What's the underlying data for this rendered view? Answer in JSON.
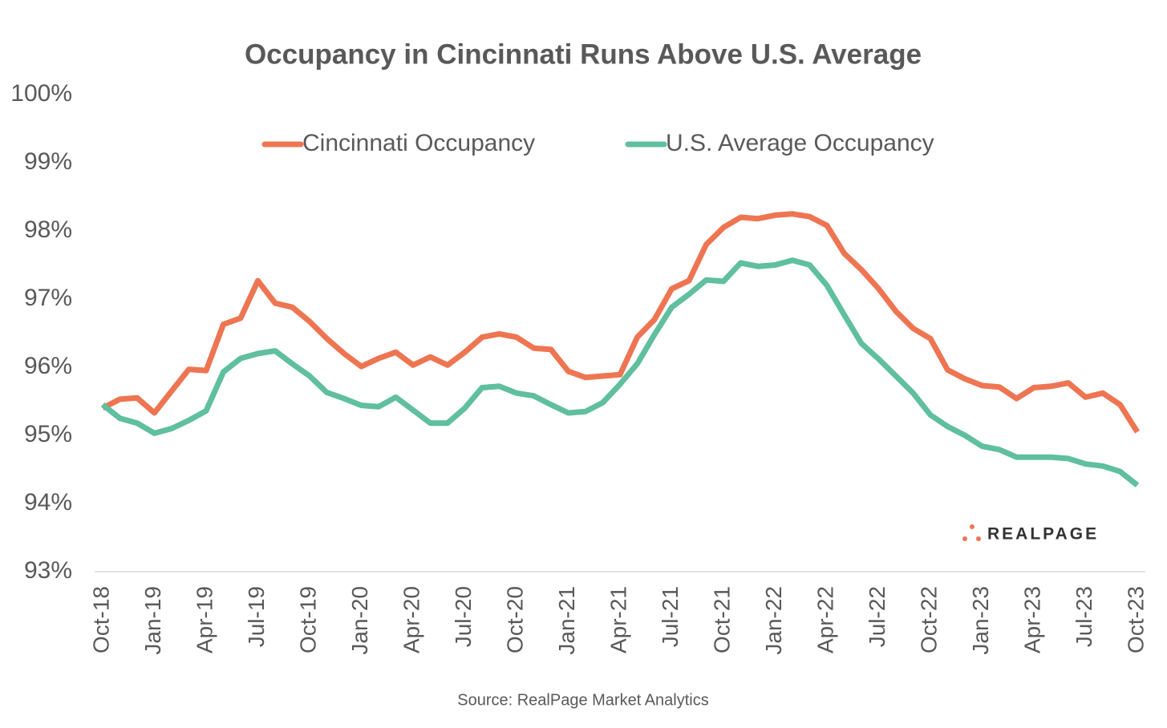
{
  "chart_data": {
    "type": "line",
    "title": "Occupancy in Cincinnati Runs Above U.S. Average",
    "source": "Source: RealPage Market Analytics",
    "logo": "REALPAGE",
    "categories": [
      "Oct-18",
      null,
      null,
      "Jan-19",
      null,
      null,
      "Apr-19",
      null,
      null,
      "Jul-19",
      null,
      null,
      "Oct-19",
      null,
      null,
      "Jan-20",
      null,
      null,
      "Apr-20",
      null,
      null,
      "Jul-20",
      null,
      null,
      "Oct-20",
      null,
      null,
      "Jan-21",
      null,
      null,
      "Apr-21",
      null,
      null,
      "Jul-21",
      null,
      null,
      "Oct-21",
      null,
      null,
      "Jan-22",
      null,
      null,
      "Apr-22",
      null,
      null,
      "Jul-22",
      null,
      null,
      "Oct-22",
      null,
      null,
      "Jan-23",
      null,
      null,
      "Apr-23",
      null,
      null,
      "Jul-23",
      null,
      null,
      "Oct-23"
    ],
    "series": [
      {
        "name": "Cincinnati Occupancy",
        "color": "#ee7552",
        "values": [
          95.4,
          95.53,
          95.55,
          95.33,
          95.65,
          95.97,
          95.95,
          96.63,
          96.72,
          97.27,
          96.94,
          96.88,
          96.67,
          96.42,
          96.2,
          96.01,
          96.13,
          96.22,
          96.03,
          96.15,
          96.03,
          96.22,
          96.44,
          96.49,
          96.44,
          96.28,
          96.26,
          95.94,
          95.85,
          95.87,
          95.89,
          96.44,
          96.7,
          97.15,
          97.27,
          97.8,
          98.05,
          98.2,
          98.18,
          98.23,
          98.25,
          98.21,
          98.08,
          97.67,
          97.43,
          97.15,
          96.82,
          96.57,
          96.42,
          95.96,
          95.83,
          95.73,
          95.71,
          95.54,
          95.7,
          95.72,
          95.77,
          95.56,
          95.62,
          95.45,
          95.05
        ]
      },
      {
        "name": "U.S. Average Occupancy",
        "color": "#5fbf9e",
        "values": [
          95.45,
          95.25,
          95.18,
          95.03,
          95.1,
          95.22,
          95.36,
          95.93,
          96.13,
          96.2,
          96.24,
          96.05,
          95.87,
          95.63,
          95.54,
          95.44,
          95.42,
          95.56,
          95.37,
          95.18,
          95.18,
          95.4,
          95.7,
          95.72,
          95.62,
          95.58,
          95.45,
          95.33,
          95.35,
          95.48,
          95.75,
          96.05,
          96.48,
          96.88,
          97.07,
          97.28,
          97.26,
          97.53,
          97.48,
          97.5,
          97.57,
          97.5,
          97.2,
          96.77,
          96.35,
          96.12,
          95.87,
          95.62,
          95.3,
          95.13,
          95.0,
          94.84,
          94.79,
          94.68,
          94.68,
          94.68,
          94.66,
          94.58,
          94.55,
          94.47,
          94.27
        ]
      }
    ],
    "ylim": [
      93,
      100
    ],
    "yticks": [
      {
        "value": 93,
        "label": "93%"
      },
      {
        "value": 94,
        "label": "94%"
      },
      {
        "value": 95,
        "label": "95%"
      },
      {
        "value": 96,
        "label": "96%"
      },
      {
        "value": 97,
        "label": "97%"
      },
      {
        "value": 98,
        "label": "98%"
      },
      {
        "value": 99,
        "label": "99%"
      },
      {
        "value": 100,
        "label": "100%"
      }
    ],
    "grid": false,
    "legend": "top"
  }
}
